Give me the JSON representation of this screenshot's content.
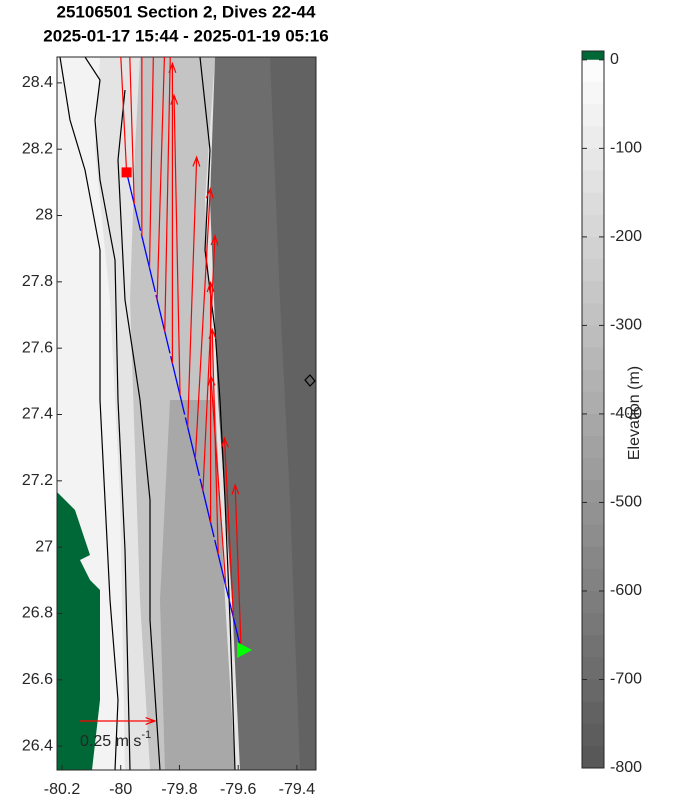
{
  "chart_data": {
    "type": "vector-map",
    "title": "25106501 Section 2, Dives 22-44",
    "subtitle": "2025-01-17 15:44 - 2025-01-19 05:16",
    "xlim": [
      -80.217,
      -79.335
    ],
    "ylim": [
      26.328,
      28.478
    ],
    "xticks": [
      -80.2,
      -80,
      -79.8,
      -79.6,
      -79.4
    ],
    "yticks": [
      26.4,
      26.6,
      26.8,
      27,
      27.2,
      27.4,
      27.6,
      27.8,
      28,
      28.2,
      28.4
    ],
    "track": {
      "color": "#0000ff",
      "start": [
        -79.98,
        28.13
      ],
      "end": [
        -79.59,
        26.69
      ],
      "start_color": "#ff0000",
      "end_color": "#00ff00"
    },
    "vector_color": "#ff0000",
    "vectors": [
      {
        "lon": -79.98,
        "lat": 28.13,
        "u": -0.05,
        "v": 1.0
      },
      {
        "lon": -79.954,
        "lat": 28.034,
        "u": -0.03,
        "v": 1.0
      },
      {
        "lon": -79.928,
        "lat": 27.938,
        "u": 0.0,
        "v": 1.1
      },
      {
        "lon": -79.902,
        "lat": 27.842,
        "u": 0.02,
        "v": 1.1
      },
      {
        "lon": -79.876,
        "lat": 27.746,
        "u": 0.03,
        "v": 1.0
      },
      {
        "lon": -79.85,
        "lat": 27.65,
        "u": 0.02,
        "v": 1.0
      },
      {
        "lon": -79.824,
        "lat": 27.554,
        "u": 0.0,
        "v": 1.0
      },
      {
        "lon": -79.798,
        "lat": 27.458,
        "u": -0.02,
        "v": 1.0
      },
      {
        "lon": -79.772,
        "lat": 27.362,
        "u": 0.03,
        "v": 0.9
      },
      {
        "lon": -79.746,
        "lat": 27.266,
        "u": 0.05,
        "v": 0.9
      },
      {
        "lon": -79.72,
        "lat": 27.17,
        "u": 0.04,
        "v": 0.85
      },
      {
        "lon": -79.694,
        "lat": 27.074,
        "u": 0.0,
        "v": 0.8
      },
      {
        "lon": -79.668,
        "lat": 26.978,
        "u": -0.02,
        "v": 0.75
      },
      {
        "lon": -79.642,
        "lat": 26.882,
        "u": -0.05,
        "v": 0.7
      },
      {
        "lon": -79.616,
        "lat": 26.786,
        "u": -0.03,
        "v": 0.6
      },
      {
        "lon": -79.59,
        "lat": 26.69,
        "u": -0.02,
        "v": 0.55
      }
    ],
    "scale_arrow": {
      "value": 0.25,
      "label": "0.25 m s",
      "superscript": "-1"
    },
    "colorbar": {
      "label": "Elevation (m)",
      "lim": [
        -800,
        10
      ],
      "ticks": [
        0,
        -100,
        -200,
        -300,
        -400,
        -500,
        -600,
        -700,
        -800
      ],
      "land_color": "#006837"
    }
  }
}
